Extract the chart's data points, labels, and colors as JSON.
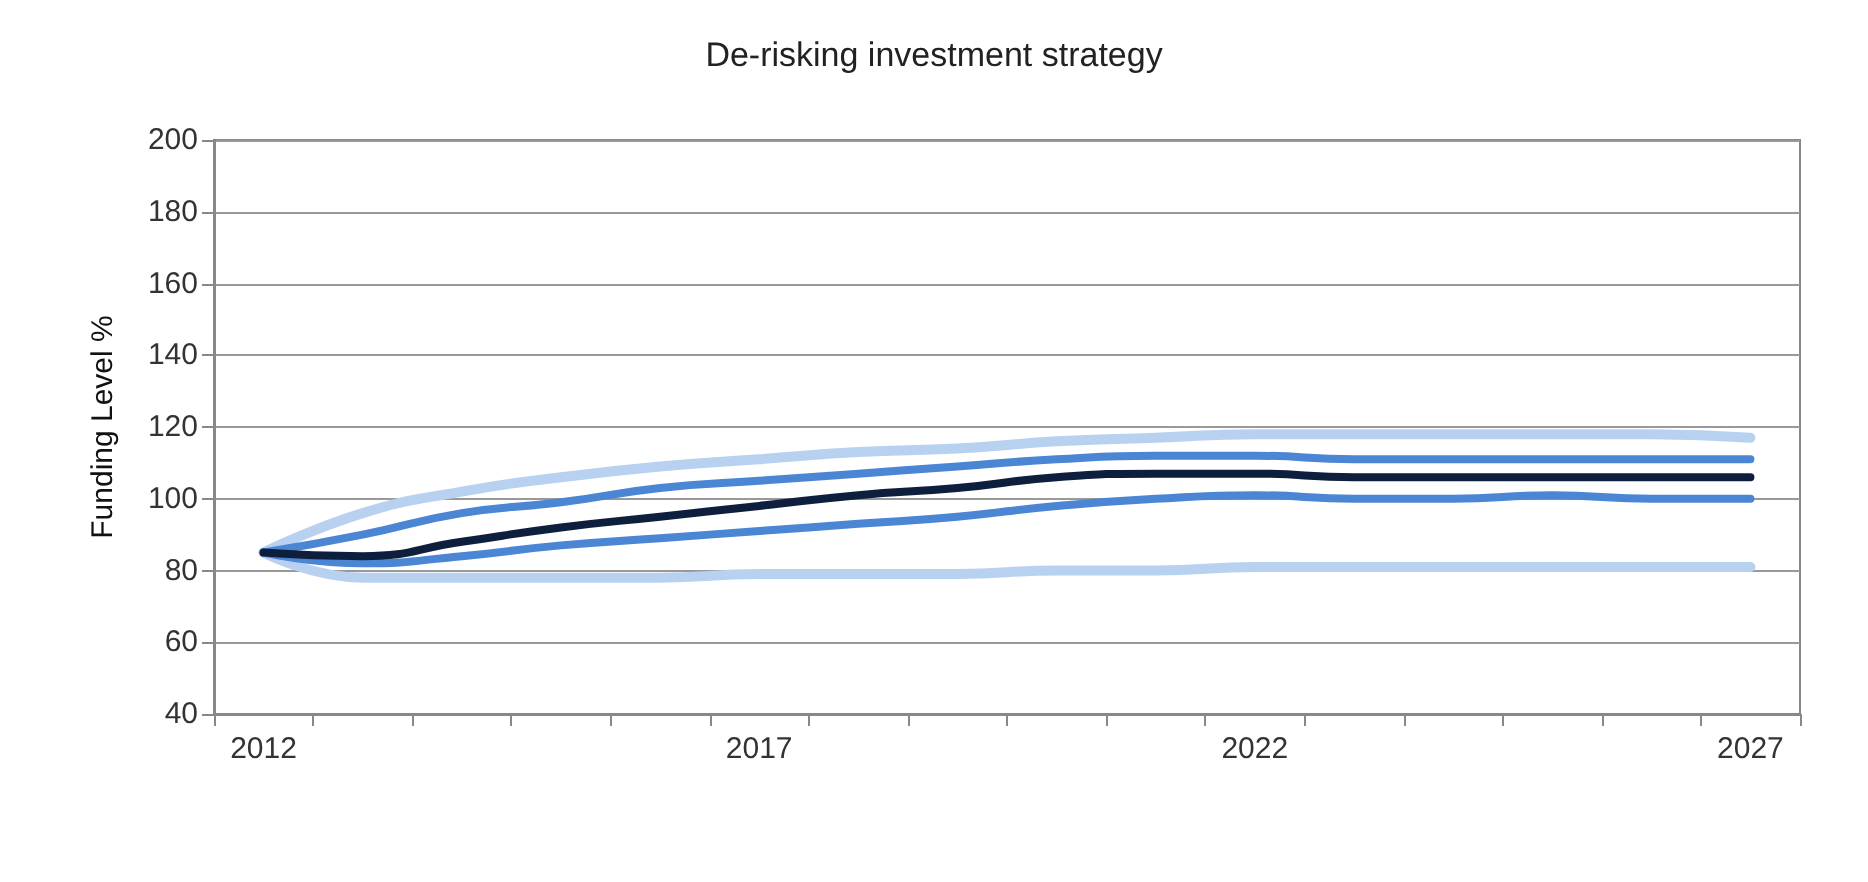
{
  "chart_data": {
    "type": "line",
    "title": "De-risking investment strategy",
    "ylabel": "Funding Level %",
    "categories": [
      "2012",
      null,
      null,
      null,
      null,
      "2017",
      null,
      null,
      null,
      null,
      "2022",
      null,
      null,
      null,
      null,
      "2027"
    ],
    "series": [
      {
        "color": "#b9d1f0",
        "values": [
          85,
          96,
          102,
          106,
          109,
          111,
          113,
          114,
          116,
          117,
          118,
          118,
          118,
          118,
          118,
          117
        ]
      },
      {
        "color": "#b9d1f0",
        "values": [
          85,
          78,
          78,
          78,
          78,
          79,
          79,
          79,
          80,
          80,
          81,
          81,
          81,
          81,
          81,
          81
        ]
      },
      {
        "color": "#4a86d4",
        "values": [
          85,
          90,
          96,
          99,
          103,
          105,
          107,
          109,
          111,
          112,
          112,
          111,
          111,
          111,
          111,
          111
        ]
      },
      {
        "color": "#4a86d4",
        "values": [
          85,
          82,
          84,
          87,
          89,
          91,
          93,
          95,
          98,
          100,
          101,
          100,
          100,
          101,
          100,
          100
        ]
      },
      {
        "color": "#0d1f3c",
        "values": [
          85,
          84,
          88,
          92,
          95,
          98,
          101,
          103,
          106,
          107,
          107,
          106,
          106,
          106,
          106,
          106
        ]
      }
    ],
    "ylim": [
      40,
      200
    ],
    "yticks": [
      40,
      60,
      80,
      100,
      120,
      140,
      160,
      180,
      200
    ],
    "grid": "y",
    "marker": "none",
    "line_style": "solid"
  }
}
